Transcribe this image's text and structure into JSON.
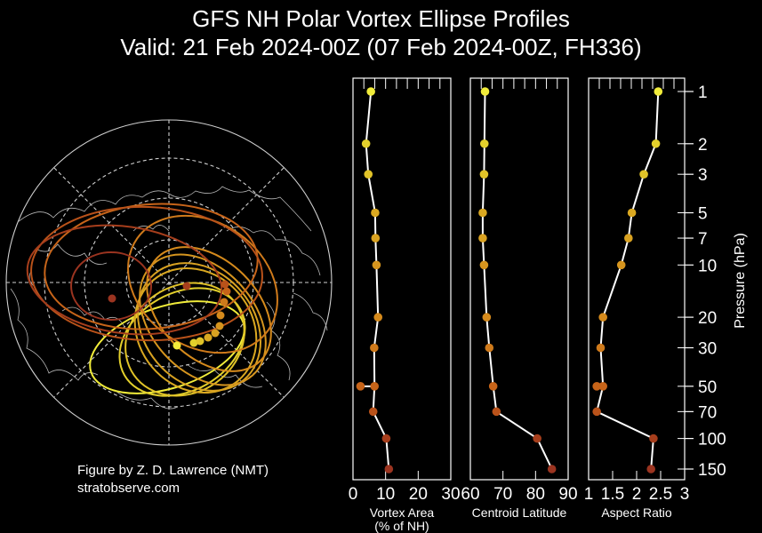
{
  "title_line1": "GFS NH Polar Vortex Ellipse Profiles",
  "title_line2": "Valid: 21 Feb 2024-00Z  (07 Feb 2024-00Z, FH336)",
  "credit_line1": "Figure by Z. D. Lawrence (NMT)",
  "credit_line2": "stratobserve.com",
  "chart_data": [
    {
      "type": "line",
      "panel": "vortex-area",
      "xlabel": "Vortex Area",
      "xlabel2": "(% of NH)",
      "xlim": [
        0,
        30
      ],
      "xticks": [
        0,
        10,
        20,
        30
      ],
      "pressure": [
        1,
        2,
        3,
        5,
        7,
        10,
        20,
        30,
        50,
        70,
        100,
        150
      ],
      "values": [
        5.5,
        4,
        4.7,
        6.8,
        6.9,
        7.2,
        7.7,
        6.5,
        6.6,
        6.2,
        10.2,
        11
      ],
      "extra_point": {
        "pressure": 50,
        "value": 2.3
      }
    },
    {
      "type": "line",
      "panel": "centroid-latitude",
      "xlabel": "Centroid Latitude",
      "xlim": [
        60,
        90
      ],
      "xticks": [
        60,
        70,
        80,
        90
      ],
      "pressure": [
        1,
        2,
        3,
        5,
        7,
        10,
        20,
        30,
        50,
        70,
        100,
        150
      ],
      "values": [
        64.5,
        64.3,
        64.2,
        63.8,
        63.8,
        64.2,
        65,
        65.8,
        67,
        68,
        80.5,
        85
      ]
    },
    {
      "type": "line",
      "panel": "aspect-ratio",
      "xlabel": "Aspect Ratio",
      "xlim": [
        1,
        3
      ],
      "xticks": [
        1,
        1.5,
        2,
        2.5,
        3
      ],
      "xticklabels": [
        "1",
        "1.5",
        "2",
        "2.5",
        "3"
      ],
      "pressure": [
        1,
        2,
        3,
        5,
        7,
        10,
        20,
        30,
        50,
        70,
        100,
        150
      ],
      "values": [
        2.45,
        2.4,
        2.15,
        1.9,
        1.83,
        1.68,
        1.3,
        1.25,
        1.3,
        1.17,
        2.35,
        2.3
      ],
      "extra_point": {
        "pressure": 50,
        "value": 1.17
      }
    }
  ],
  "pressure_axis": {
    "label": "Pressure (hPa)",
    "levels": [
      1,
      2,
      3,
      5,
      7,
      10,
      20,
      30,
      50,
      70,
      100,
      150
    ],
    "tick_labels": [
      "1",
      "2",
      "3",
      "5",
      "7",
      "10",
      "20",
      "30",
      "50",
      "70",
      "100",
      "150"
    ]
  },
  "level_colors": [
    "#f1ec3a",
    "#e3d02c",
    "#e1c328",
    "#daa821",
    "#d9a221",
    "#d6951e",
    "#d58a1c",
    "#cf7a1b",
    "#c76419",
    "#b9521a",
    "#a63e1c",
    "#9b3420"
  ],
  "polar_map": {
    "description_free": true,
    "grid_color": "#cccccc",
    "coast_color": "#bbbbbb"
  }
}
